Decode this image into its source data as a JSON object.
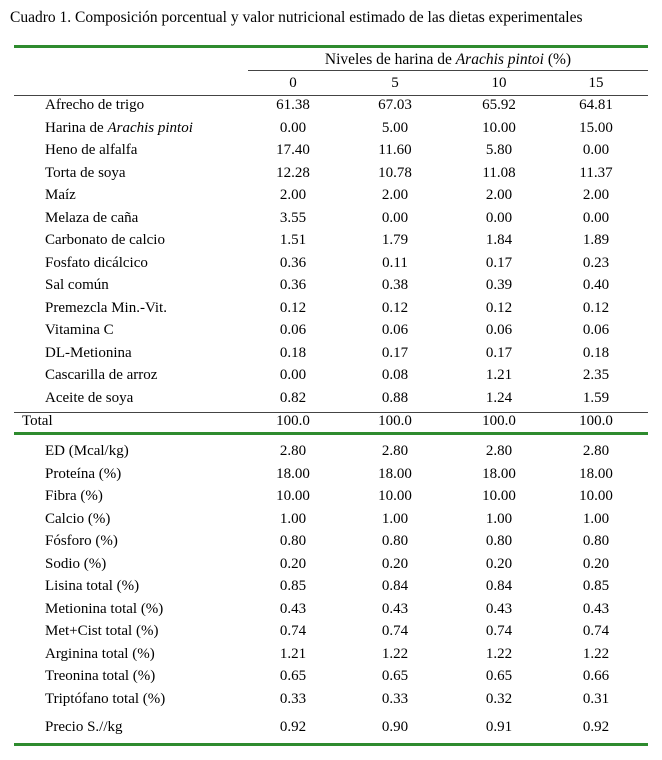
{
  "title": "Cuadro 1.  Composición porcentual y valor nutricional estimado de las dietas experimentales",
  "header": {
    "span_label_pre": "Niveles de harina de ",
    "span_label_italic": "Arachis pintoi",
    "span_label_post": " (%)",
    "levels": [
      "0",
      "5",
      "10",
      "15"
    ]
  },
  "ingredients": [
    {
      "label": "Afrecho de trigo",
      "values": [
        "61.38",
        "67.03",
        "65.92",
        "64.81"
      ]
    },
    {
      "label_pre": "Harina de ",
      "label_italic": "Arachis pintoi",
      "values": [
        "0.00",
        "5.00",
        "10.00",
        "15.00"
      ]
    },
    {
      "label": "Heno de alfalfa",
      "values": [
        "17.40",
        "11.60",
        "5.80",
        "0.00"
      ]
    },
    {
      "label": "Torta de soya",
      "values": [
        "12.28",
        "10.78",
        "11.08",
        "11.37"
      ]
    },
    {
      "label": "Maíz",
      "values": [
        "2.00",
        "2.00",
        "2.00",
        "2.00"
      ]
    },
    {
      "label": "Melaza de caña",
      "values": [
        "3.55",
        "0.00",
        "0.00",
        "0.00"
      ]
    },
    {
      "label": "Carbonato de calcio",
      "values": [
        "1.51",
        "1.79",
        "1.84",
        "1.89"
      ]
    },
    {
      "label": "Fosfato dicálcico",
      "values": [
        "0.36",
        "0.11",
        "0.17",
        "0.23"
      ]
    },
    {
      "label": "Sal común",
      "values": [
        "0.36",
        "0.38",
        "0.39",
        "0.40"
      ]
    },
    {
      "label": "Premezcla Min.-Vit.",
      "values": [
        "0.12",
        "0.12",
        "0.12",
        "0.12"
      ]
    },
    {
      "label": "Vitamina C",
      "values": [
        "0.06",
        "0.06",
        "0.06",
        "0.06"
      ]
    },
    {
      "label": "DL-Metionina",
      "values": [
        "0.18",
        "0.17",
        "0.17",
        "0.18"
      ]
    },
    {
      "label": "Cascarilla de arroz",
      "values": [
        "0.00",
        "0.08",
        "1.21",
        "2.35"
      ]
    },
    {
      "label": "Aceite de soya",
      "values": [
        "0.82",
        "0.88",
        "1.24",
        "1.59"
      ]
    }
  ],
  "total": {
    "label": "Total",
    "values": [
      "100.0",
      "100.0",
      "100.0",
      "100.0"
    ]
  },
  "nutrients": [
    {
      "label": "ED (Mcal/kg)",
      "values": [
        "2.80",
        "2.80",
        "2.80",
        "2.80"
      ]
    },
    {
      "label": "Proteína (%)",
      "values": [
        "18.00",
        "18.00",
        "18.00",
        "18.00"
      ]
    },
    {
      "label": "Fibra (%)",
      "values": [
        "10.00",
        "10.00",
        "10.00",
        "10.00"
      ]
    },
    {
      "label": "Calcio (%)",
      "values": [
        "1.00",
        "1.00",
        "1.00",
        "1.00"
      ]
    },
    {
      "label": "Fósforo (%)",
      "values": [
        "0.80",
        "0.80",
        "0.80",
        "0.80"
      ]
    },
    {
      "label": "Sodio (%)",
      "values": [
        "0.20",
        "0.20",
        "0.20",
        "0.20"
      ]
    },
    {
      "label": "Lisina total (%)",
      "values": [
        "0.85",
        "0.84",
        "0.84",
        "0.85"
      ]
    },
    {
      "label": "Metionina total (%)",
      "values": [
        "0.43",
        "0.43",
        "0.43",
        "0.43"
      ]
    },
    {
      "label": "Met+Cist total (%)",
      "values": [
        "0.74",
        "0.74",
        "0.74",
        "0.74"
      ]
    },
    {
      "label": "Arginina total (%)",
      "values": [
        "1.21",
        "1.22",
        "1.22",
        "1.22"
      ]
    },
    {
      "label": "Treonina total (%)",
      "values": [
        "0.65",
        "0.65",
        "0.65",
        "0.66"
      ]
    },
    {
      "label": "Triptófano total (%)",
      "values": [
        "0.33",
        "0.33",
        "0.32",
        "0.31"
      ]
    }
  ],
  "price": {
    "label": "Precio S.//kg",
    "values": [
      "0.92",
      "0.90",
      "0.91",
      "0.92"
    ]
  },
  "colors": {
    "rule": "#2e8b2e"
  }
}
